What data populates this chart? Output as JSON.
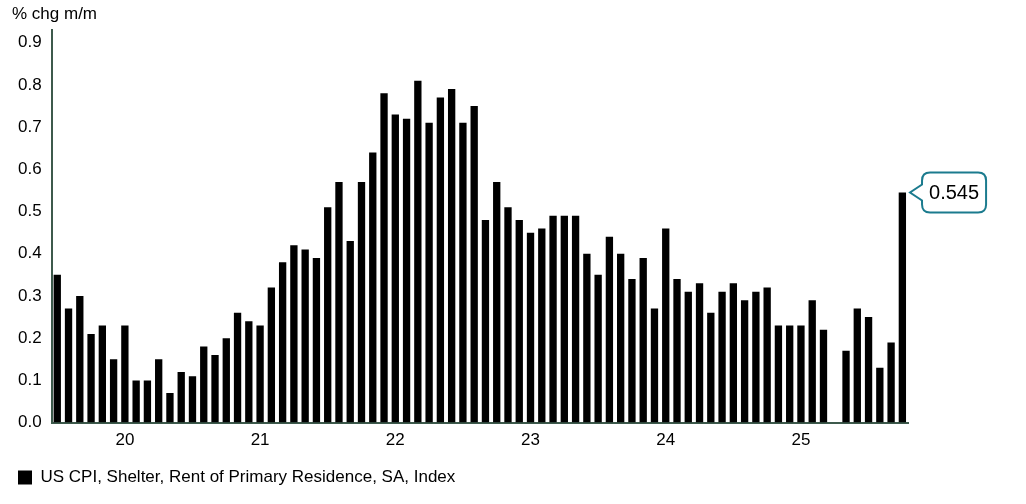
{
  "chart_data": {
    "type": "bar",
    "ylabel": "% chg m/m",
    "categories": [
      null,
      null,
      null,
      null,
      null,
      null,
      "20",
      null,
      null,
      null,
      null,
      null,
      null,
      null,
      null,
      null,
      null,
      null,
      "21",
      null,
      null,
      null,
      null,
      null,
      null,
      null,
      null,
      null,
      null,
      null,
      "22",
      null,
      null,
      null,
      null,
      null,
      null,
      null,
      null,
      null,
      null,
      null,
      "23",
      null,
      null,
      null,
      null,
      null,
      null,
      null,
      null,
      null,
      null,
      null,
      "24",
      null,
      null,
      null,
      null,
      null,
      null,
      null,
      null,
      null,
      null,
      null,
      "25",
      null,
      null,
      null,
      null,
      null,
      null,
      null,
      null,
      null
    ],
    "series": [
      {
        "name": "US CPI, Shelter, Rent of Primary Residence, SA, Index",
        "color": "#000000",
        "values": [
          0.35,
          0.27,
          0.3,
          0.21,
          0.23,
          0.15,
          0.23,
          0.1,
          0.1,
          0.15,
          0.07,
          0.12,
          0.11,
          0.18,
          0.16,
          0.2,
          0.26,
          0.24,
          0.23,
          0.32,
          0.38,
          0.42,
          0.41,
          0.39,
          0.51,
          0.57,
          0.43,
          0.57,
          0.64,
          0.78,
          0.73,
          0.72,
          0.81,
          0.71,
          0.77,
          0.79,
          0.71,
          0.75,
          0.48,
          0.57,
          0.51,
          0.48,
          0.45,
          0.46,
          0.49,
          0.49,
          0.49,
          0.4,
          0.35,
          0.44,
          0.4,
          0.34,
          0.39,
          0.27,
          0.46,
          0.34,
          0.31,
          0.33,
          0.26,
          0.31,
          0.33,
          0.29,
          0.31,
          0.32,
          0.23,
          0.23,
          0.23,
          0.29,
          0.22,
          null,
          0.17,
          0.27,
          0.25,
          0.13,
          0.19,
          0.545
        ]
      }
    ],
    "ylim": [
      0,
      0.93
    ],
    "yticks": [
      {
        "value": 0,
        "label": "0.0"
      },
      {
        "value": 0.1,
        "label": "0.1"
      },
      {
        "value": 0.2,
        "label": "0.2"
      },
      {
        "value": 0.3,
        "label": "0.3"
      },
      {
        "value": 0.4,
        "label": "0.4"
      },
      {
        "value": 0.5,
        "label": "0.5"
      },
      {
        "value": 0.6,
        "label": "0.6"
      },
      {
        "value": 0.7,
        "label": "0.7"
      },
      {
        "value": 0.8,
        "label": "0.8"
      },
      {
        "value": 0.9,
        "label": "0.9"
      }
    ],
    "annotations": [
      "0.545"
    ],
    "grid": false,
    "legend": "bottom left"
  }
}
